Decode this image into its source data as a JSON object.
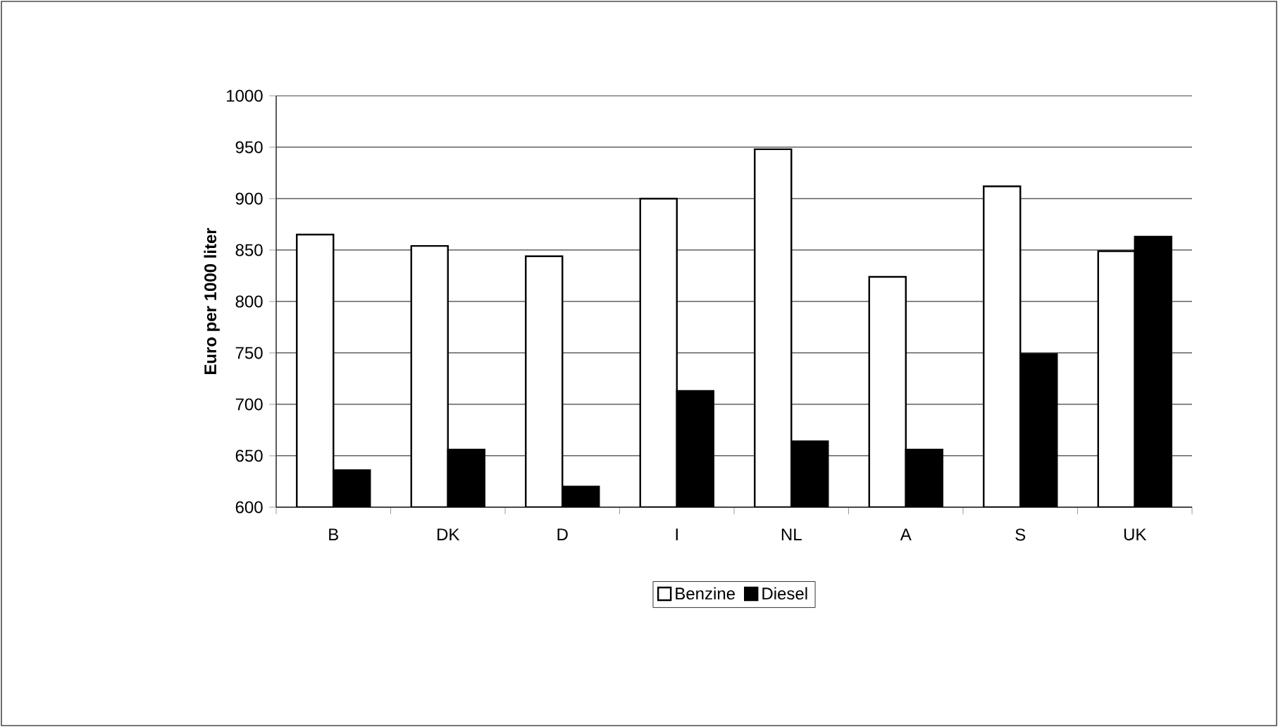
{
  "chart_data": {
    "type": "bar",
    "ylabel": "Euro per 1000 liter",
    "categories": [
      "B",
      "DK",
      "D",
      "I",
      "NL",
      "A",
      "S",
      "UK"
    ],
    "series": [
      {
        "name": "Benzine",
        "color": "#ffffff",
        "values": [
          865,
          854,
          844,
          900,
          948,
          824,
          912,
          849
        ]
      },
      {
        "name": "Diesel",
        "color": "#000000",
        "values": [
          636,
          656,
          620,
          713,
          664,
          656,
          749,
          863
        ]
      }
    ],
    "ylim": [
      600,
      1000
    ],
    "yticks": [
      600,
      650,
      700,
      750,
      800,
      850,
      900,
      950,
      1000
    ],
    "grid": "y",
    "legend": "bottom"
  }
}
